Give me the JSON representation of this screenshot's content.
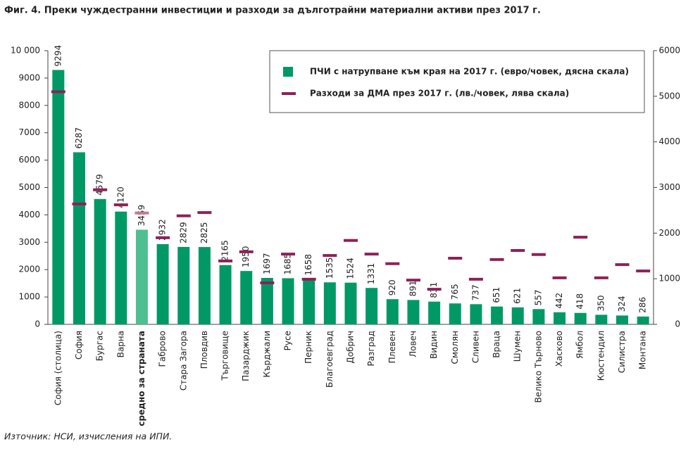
{
  "chart_data": {
    "type": "bar",
    "title": "Фиг.  4. Преки чуждестранни инвестиции и разходи за дълготрайни материални активи през 2017 г.",
    "note": "Източник: НСИ, изчисления на ИПИ.",
    "categories": [
      "София (столица)",
      "София",
      "Бургас",
      "Варна",
      "средно за страната",
      "Габрово",
      "Стара Загора",
      "Пловдив",
      "Търговище",
      "Пазарджик",
      "Кърджали",
      "Русе",
      "Перник",
      "Благоевград",
      "Добрич",
      "Разград",
      "Плевен",
      "Ловеч",
      "Видин",
      "Смолян",
      "Сливен",
      "Враца",
      "Шумен",
      "Велико Търново",
      "Хасково",
      "Ямбол",
      "Кюстендил",
      "Силистра",
      "Монтана"
    ],
    "series": [
      {
        "name": "ПЧИ с натрупване към края на 2017 г. (евро/човек, дясна скала)",
        "type": "bar",
        "axis": "y",
        "color": "#009966",
        "colors": [
          "#009966",
          "#009966",
          "#009966",
          "#009966",
          "#4dbf91",
          "#009966",
          "#009966",
          "#009966",
          "#009966",
          "#009966",
          "#009966",
          "#009966",
          "#009966",
          "#009966",
          "#009966",
          "#009966",
          "#009966",
          "#009966",
          "#009966",
          "#009966",
          "#009966",
          "#009966",
          "#009966",
          "#009966",
          "#009966",
          "#009966",
          "#009966",
          "#009966",
          "#009966"
        ],
        "values": [
          9294,
          6287,
          4579,
          4120,
          3459,
          2932,
          2829,
          2825,
          2165,
          1950,
          1697,
          1685,
          1658,
          1535,
          1524,
          1331,
          920,
          891,
          831,
          765,
          737,
          651,
          621,
          557,
          442,
          418,
          350,
          324,
          286
        ]
      },
      {
        "name": "Разходи за ДМА през 2017 г. (лв./човек, лява скала)",
        "type": "dash",
        "axis": "y2",
        "color": "#8e2157",
        "colors": [
          "#8e2157",
          "#8e2157",
          "#8e2157",
          "#8e2157",
          "#c27a98",
          "#8e2157",
          "#8e2157",
          "#8e2157",
          "#8e2157",
          "#8e2157",
          "#8e2157",
          "#8e2157",
          "#8e2157",
          "#8e2157",
          "#8e2157",
          "#8e2157",
          "#8e2157",
          "#8e2157",
          "#8e2157",
          "#8e2157",
          "#8e2157",
          "#8e2157",
          "#8e2157",
          "#8e2157",
          "#8e2157",
          "#8e2157",
          "#8e2157",
          "#8e2157",
          "#8e2157"
        ],
        "values": [
          5100,
          2640,
          2950,
          2620,
          2440,
          1900,
          2380,
          2450,
          1390,
          1590,
          910,
          1540,
          990,
          1510,
          1840,
          1540,
          1330,
          970,
          770,
          1450,
          990,
          1420,
          1620,
          1530,
          1020,
          1910,
          1020,
          1310,
          1170
        ]
      }
    ],
    "ylim": [
      0,
      10000
    ],
    "yticks": [
      0,
      1000,
      2000,
      3000,
      4000,
      5000,
      6000,
      7000,
      8000,
      9000,
      {
        "value": 10000,
        "label": "10 000"
      }
    ],
    "y2lim": [
      0,
      6000
    ],
    "y2ticks": [
      0,
      1000,
      2000,
      3000,
      4000,
      5000,
      6000
    ]
  }
}
